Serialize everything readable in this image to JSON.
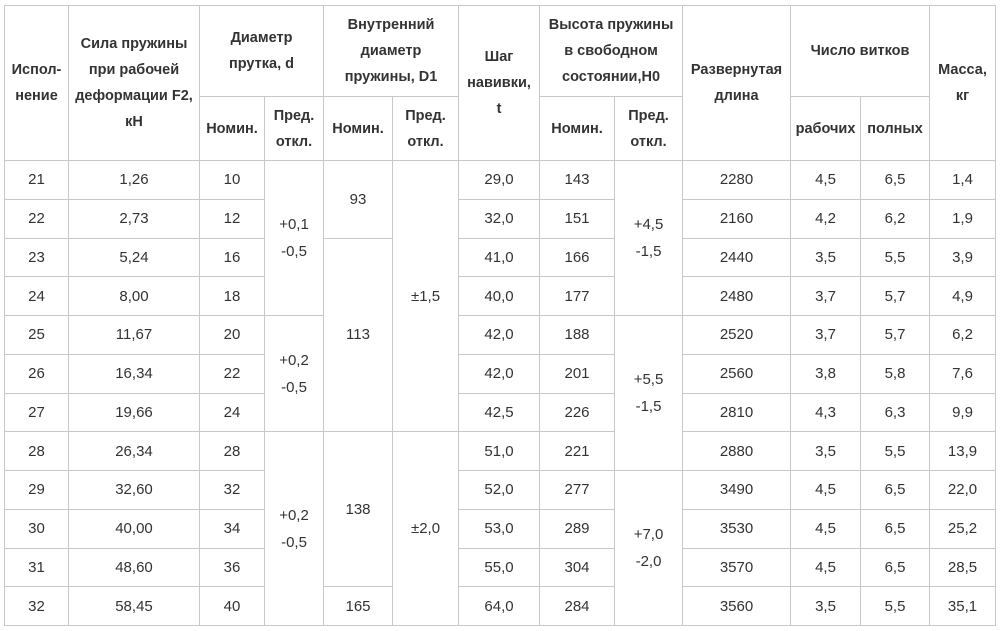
{
  "table": {
    "header": {
      "row1": [
        "Испол-\nнение",
        "Сила пружины\nпри рабочей\nдеформации F2,\nкН",
        "Диаметр\nпрутка, d",
        "Внутренний\nдиаметр\nпружины, D1",
        "Шаг\nнавивки,\nt",
        "Высота пружины\nв свободном\nсостоянии,H0",
        "Развернутая\nдлина",
        "Число витков",
        "Масса,\nкг"
      ],
      "row2": [
        "Номин.",
        "Пред.\nоткл.",
        "Номин.",
        "Пред.\nоткл.",
        "Номин.",
        "Пред.\nоткл.",
        "рабочих",
        "полных"
      ]
    },
    "rows": [
      [
        "21",
        "1,26",
        "10",
        "+0,1\n-0,5",
        "93",
        "±1,5",
        "29,0",
        "143",
        "+4,5\n-1,5",
        "2280",
        "4,5",
        "6,5",
        "1,4"
      ],
      [
        "22",
        "2,73",
        "12",
        "32,0",
        "151",
        "2160",
        "4,2",
        "6,2",
        "1,9"
      ],
      [
        "23",
        "5,24",
        "16",
        "113",
        "41,0",
        "166",
        "2440",
        "3,5",
        "5,5",
        "3,9"
      ],
      [
        "24",
        "8,00",
        "18",
        "40,0",
        "177",
        "2480",
        "3,7",
        "5,7",
        "4,9"
      ],
      [
        "25",
        "11,67",
        "20",
        "+0,2\n-0,5",
        "42,0",
        "188",
        "+5,5\n-1,5",
        "2520",
        "3,7",
        "5,7",
        "6,2"
      ],
      [
        "26",
        "16,34",
        "22",
        "42,0",
        "201",
        "2560",
        "3,8",
        "5,8",
        "7,6"
      ],
      [
        "27",
        "19,66",
        "24",
        "42,5",
        "226",
        "2810",
        "4,3",
        "6,3",
        "9,9"
      ],
      [
        "28",
        "26,34",
        "28",
        "+0,2\n-0,5",
        "138",
        "±2,0",
        "51,0",
        "221",
        "2880",
        "3,5",
        "5,5",
        "13,9"
      ],
      [
        "29",
        "32,60",
        "32",
        "52,0",
        "277",
        "+7,0\n-2,0",
        "3490",
        "4,5",
        "6,5",
        "22,0"
      ],
      [
        "30",
        "40,00",
        "34",
        "53,0",
        "289",
        "3530",
        "4,5",
        "6,5",
        "25,2"
      ],
      [
        "31",
        "48,60",
        "36",
        "55,0",
        "304",
        "3570",
        "4,5",
        "6,5",
        "28,5"
      ],
      [
        "32",
        "58,45",
        "40",
        "165",
        "64,0",
        "284",
        "3560",
        "3,5",
        "5,5",
        "35,1"
      ]
    ]
  }
}
